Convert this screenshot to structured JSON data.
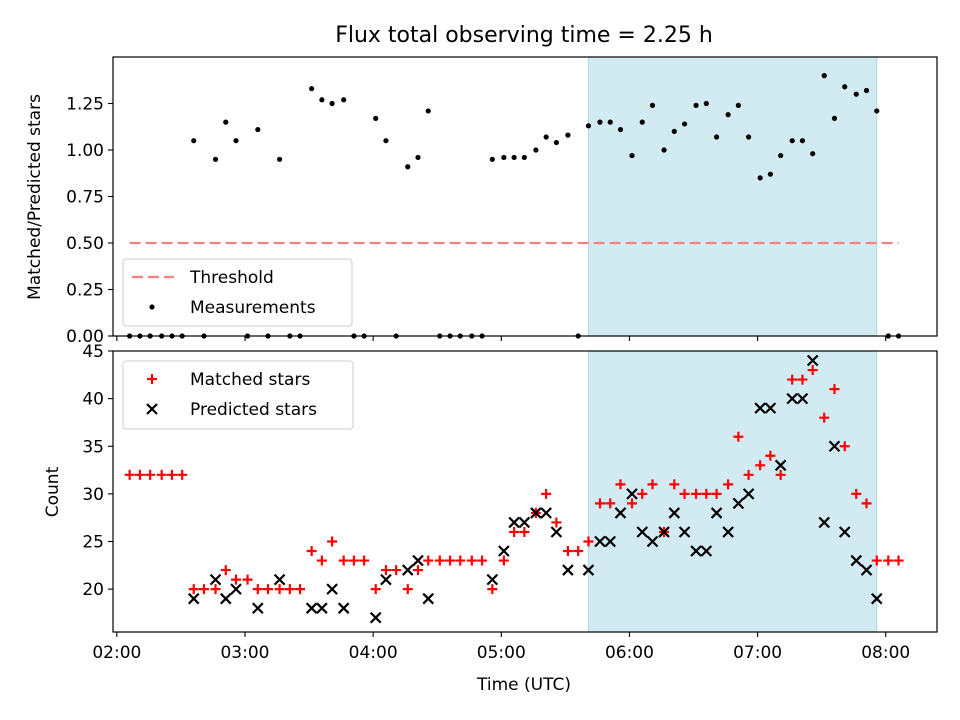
{
  "figure": {
    "title": "Flux total observing time = 2.25 h",
    "xlabel": "Time (UTC)",
    "x_ticks": [
      "02:00",
      "03:00",
      "04:00",
      "05:00",
      "06:00",
      "07:00",
      "08:00"
    ]
  },
  "chart_data": [
    {
      "type": "scatter",
      "ylabel": "Matched/Predicted stars",
      "xlim": [
        1.97,
        8.4
      ],
      "ylim": [
        0,
        1.5
      ],
      "y_ticks": [
        "0.00",
        "0.25",
        "0.50",
        "0.75",
        "1.00",
        "1.25"
      ],
      "y_tick_values": [
        0,
        0.25,
        0.5,
        0.75,
        1.0,
        1.25
      ],
      "highlight": {
        "x_range": [
          5.68,
          7.93
        ],
        "color": "#add8e6"
      },
      "threshold": {
        "name": "Threshold",
        "value": 0.5,
        "x_range": [
          2.1,
          8.1
        ],
        "color": "#ff7f7f"
      },
      "legend": {
        "placement": "lower left",
        "entries": [
          "Threshold",
          "Measurements"
        ]
      },
      "series": [
        {
          "name": "Measurements",
          "color": "#000000",
          "points": [
            [
              2.1,
              0
            ],
            [
              2.18,
              0
            ],
            [
              2.26,
              0
            ],
            [
              2.35,
              0
            ],
            [
              2.43,
              0
            ],
            [
              2.51,
              0
            ],
            [
              2.6,
              1.05
            ],
            [
              2.68,
              0
            ],
            [
              2.77,
              0.95
            ],
            [
              2.85,
              1.15
            ],
            [
              2.93,
              1.05
            ],
            [
              3.02,
              0
            ],
            [
              3.1,
              1.11
            ],
            [
              3.18,
              0
            ],
            [
              3.27,
              0.95
            ],
            [
              3.35,
              0
            ],
            [
              3.43,
              0
            ],
            [
              3.52,
              1.33
            ],
            [
              3.6,
              1.27
            ],
            [
              3.68,
              1.25
            ],
            [
              3.77,
              1.27
            ],
            [
              3.85,
              0
            ],
            [
              3.93,
              0
            ],
            [
              4.02,
              1.17
            ],
            [
              4.1,
              1.05
            ],
            [
              4.18,
              0
            ],
            [
              4.27,
              0.91
            ],
            [
              4.35,
              0.96
            ],
            [
              4.43,
              1.21
            ],
            [
              4.52,
              0
            ],
            [
              4.6,
              0
            ],
            [
              4.68,
              0
            ],
            [
              4.77,
              0
            ],
            [
              4.85,
              0
            ],
            [
              4.93,
              0.95
            ],
            [
              5.02,
              0.96
            ],
            [
              5.1,
              0.96
            ],
            [
              5.18,
              0.96
            ],
            [
              5.27,
              1.0
            ],
            [
              5.35,
              1.07
            ],
            [
              5.43,
              1.04
            ],
            [
              5.52,
              1.08
            ],
            [
              5.6,
              0
            ],
            [
              5.68,
              1.13
            ],
            [
              5.77,
              1.15
            ],
            [
              5.85,
              1.15
            ],
            [
              5.93,
              1.11
            ],
            [
              6.02,
              0.97
            ],
            [
              6.1,
              1.15
            ],
            [
              6.18,
              1.24
            ],
            [
              6.27,
              1.0
            ],
            [
              6.35,
              1.1
            ],
            [
              6.43,
              1.14
            ],
            [
              6.52,
              1.24
            ],
            [
              6.6,
              1.25
            ],
            [
              6.68,
              1.07
            ],
            [
              6.77,
              1.19
            ],
            [
              6.85,
              1.24
            ],
            [
              6.93,
              1.07
            ],
            [
              7.02,
              0.85
            ],
            [
              7.1,
              0.87
            ],
            [
              7.18,
              0.97
            ],
            [
              7.27,
              1.05
            ],
            [
              7.35,
              1.05
            ],
            [
              7.43,
              0.98
            ],
            [
              7.52,
              1.4
            ],
            [
              7.6,
              1.17
            ],
            [
              7.68,
              1.34
            ],
            [
              7.77,
              1.3
            ],
            [
              7.85,
              1.32
            ],
            [
              7.93,
              1.21
            ],
            [
              8.02,
              0
            ],
            [
              8.1,
              0
            ]
          ]
        }
      ]
    },
    {
      "type": "scatter",
      "ylabel": "Count",
      "xlim": [
        1.97,
        8.4
      ],
      "ylim": [
        15.5,
        45
      ],
      "y_ticks": [
        "20",
        "25",
        "30",
        "35",
        "40",
        "45"
      ],
      "y_tick_values": [
        20,
        25,
        30,
        35,
        40,
        45
      ],
      "highlight": {
        "x_range": [
          5.68,
          7.93
        ],
        "color": "#add8e6"
      },
      "legend": {
        "placement": "upper left",
        "entries": [
          "Matched stars",
          "Predicted stars"
        ]
      },
      "series": [
        {
          "name": "Matched stars",
          "marker": "plus",
          "color": "#ff0000",
          "points": [
            [
              2.1,
              32
            ],
            [
              2.18,
              32
            ],
            [
              2.26,
              32
            ],
            [
              2.35,
              32
            ],
            [
              2.43,
              32
            ],
            [
              2.51,
              32
            ],
            [
              2.6,
              20
            ],
            [
              2.68,
              20
            ],
            [
              2.77,
              20
            ],
            [
              2.85,
              22
            ],
            [
              2.93,
              21
            ],
            [
              3.02,
              21
            ],
            [
              3.1,
              20
            ],
            [
              3.18,
              20
            ],
            [
              3.27,
              20
            ],
            [
              3.35,
              20
            ],
            [
              3.43,
              20
            ],
            [
              3.52,
              24
            ],
            [
              3.6,
              23
            ],
            [
              3.68,
              25
            ],
            [
              3.77,
              23
            ],
            [
              3.85,
              23
            ],
            [
              3.93,
              23
            ],
            [
              4.02,
              20
            ],
            [
              4.1,
              22
            ],
            [
              4.18,
              22
            ],
            [
              4.27,
              20
            ],
            [
              4.35,
              22
            ],
            [
              4.43,
              23
            ],
            [
              4.52,
              23
            ],
            [
              4.6,
              23
            ],
            [
              4.68,
              23
            ],
            [
              4.77,
              23
            ],
            [
              4.85,
              23
            ],
            [
              4.93,
              20
            ],
            [
              5.02,
              23
            ],
            [
              5.1,
              26
            ],
            [
              5.18,
              26
            ],
            [
              5.27,
              28
            ],
            [
              5.35,
              30
            ],
            [
              5.43,
              27
            ],
            [
              5.52,
              24
            ],
            [
              5.6,
              24
            ],
            [
              5.68,
              25
            ],
            [
              5.77,
              29
            ],
            [
              5.85,
              29
            ],
            [
              5.93,
              31
            ],
            [
              6.02,
              29
            ],
            [
              6.1,
              30
            ],
            [
              6.18,
              31
            ],
            [
              6.27,
              26
            ],
            [
              6.35,
              31
            ],
            [
              6.43,
              30
            ],
            [
              6.52,
              30
            ],
            [
              6.6,
              30
            ],
            [
              6.68,
              30
            ],
            [
              6.77,
              31
            ],
            [
              6.85,
              36
            ],
            [
              6.93,
              32
            ],
            [
              7.02,
              33
            ],
            [
              7.1,
              34
            ],
            [
              7.18,
              32
            ],
            [
              7.27,
              42
            ],
            [
              7.35,
              42
            ],
            [
              7.43,
              43
            ],
            [
              7.52,
              38
            ],
            [
              7.6,
              41
            ],
            [
              7.68,
              35
            ],
            [
              7.77,
              30
            ],
            [
              7.85,
              29
            ],
            [
              7.93,
              23
            ],
            [
              8.02,
              23
            ],
            [
              8.1,
              23
            ]
          ]
        },
        {
          "name": "Predicted stars",
          "marker": "x",
          "color": "#000000",
          "points": [
            [
              2.6,
              19
            ],
            [
              2.77,
              21
            ],
            [
              2.85,
              19
            ],
            [
              2.93,
              20
            ],
            [
              3.1,
              18
            ],
            [
              3.27,
              21
            ],
            [
              3.52,
              18
            ],
            [
              3.6,
              18
            ],
            [
              3.68,
              20
            ],
            [
              3.77,
              18
            ],
            [
              4.02,
              17
            ],
            [
              4.1,
              21
            ],
            [
              4.27,
              22
            ],
            [
              4.35,
              23
            ],
            [
              4.43,
              19
            ],
            [
              4.93,
              21
            ],
            [
              5.02,
              24
            ],
            [
              5.1,
              27
            ],
            [
              5.18,
              27
            ],
            [
              5.27,
              28
            ],
            [
              5.35,
              28
            ],
            [
              5.43,
              26
            ],
            [
              5.52,
              22
            ],
            [
              5.68,
              22
            ],
            [
              5.77,
              25
            ],
            [
              5.85,
              25
            ],
            [
              5.93,
              28
            ],
            [
              6.02,
              30
            ],
            [
              6.1,
              26
            ],
            [
              6.18,
              25
            ],
            [
              6.27,
              26
            ],
            [
              6.35,
              28
            ],
            [
              6.43,
              26
            ],
            [
              6.52,
              24
            ],
            [
              6.6,
              24
            ],
            [
              6.68,
              28
            ],
            [
              6.77,
              26
            ],
            [
              6.85,
              29
            ],
            [
              6.93,
              30
            ],
            [
              7.02,
              39
            ],
            [
              7.1,
              39
            ],
            [
              7.18,
              33
            ],
            [
              7.27,
              40
            ],
            [
              7.35,
              40
            ],
            [
              7.43,
              44
            ],
            [
              7.52,
              27
            ],
            [
              7.6,
              35
            ],
            [
              7.68,
              26
            ],
            [
              7.77,
              23
            ],
            [
              7.85,
              22
            ],
            [
              7.93,
              19
            ]
          ]
        }
      ]
    }
  ]
}
